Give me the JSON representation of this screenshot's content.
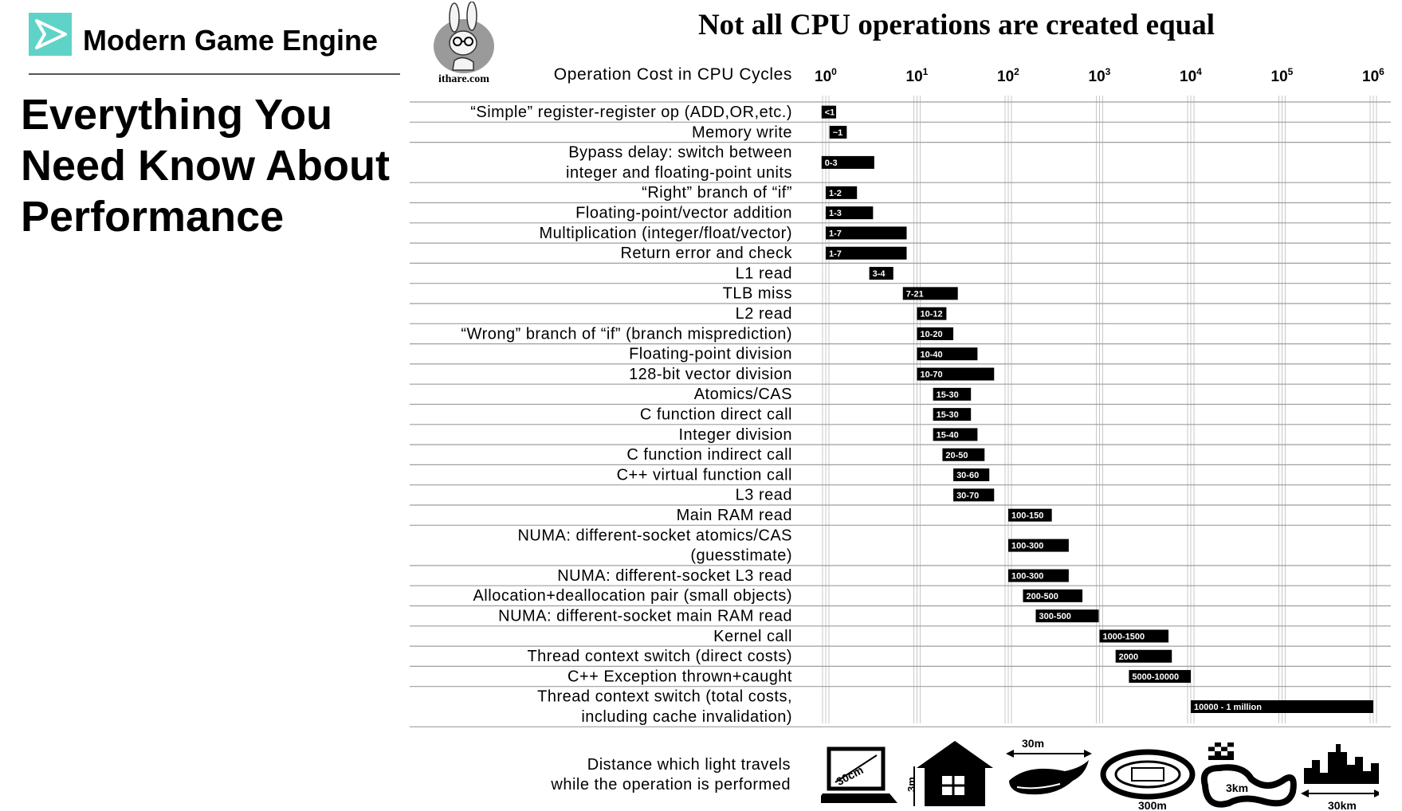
{
  "header": {
    "course_title": "Modern Game Engine",
    "slide_title": "Everything You Need Know About Performance"
  },
  "mascot": {
    "label": "ithare.com"
  },
  "chart_data": {
    "type": "bar",
    "title": "Not all CPU operations are created equal",
    "column_header": "Operation Cost in CPU Cycles",
    "x_scale": "log",
    "xlim": [
      1,
      1000000
    ],
    "x_ticks": [
      {
        "base": "10",
        "exp": "0"
      },
      {
        "base": "10",
        "exp": "1"
      },
      {
        "base": "10",
        "exp": "2"
      },
      {
        "base": "10",
        "exp": "3"
      },
      {
        "base": "10",
        "exp": "4"
      },
      {
        "base": "10",
        "exp": "5"
      },
      {
        "base": "10",
        "exp": "6"
      }
    ],
    "rows": [
      {
        "lines": [
          "“Simple” register-register op (ADD,OR,etc.)"
        ],
        "range": [
          0.9,
          1.3
        ],
        "label": "<1"
      },
      {
        "lines": [
          "Memory write"
        ],
        "range": [
          1.1,
          1.7
        ],
        "label": "~1"
      },
      {
        "lines": [
          "Bypass delay: switch between",
          "integer and floating-point units"
        ],
        "range": [
          0.9,
          3.4
        ],
        "label": "0-3"
      },
      {
        "lines": [
          "“Right” branch of “if”"
        ],
        "range": [
          1,
          2.2
        ],
        "label": "1-2"
      },
      {
        "lines": [
          "Floating-point/vector addition"
        ],
        "range": [
          1,
          3.3
        ],
        "label": "1-3"
      },
      {
        "lines": [
          "Multiplication (integer/float/vector)"
        ],
        "range": [
          1,
          7.7
        ],
        "label": "1-7"
      },
      {
        "lines": [
          "Return error and check"
        ],
        "range": [
          1,
          7.7
        ],
        "label": "1-7"
      },
      {
        "lines": [
          "L1 read"
        ],
        "range": [
          3,
          5.5
        ],
        "label": "3-4"
      },
      {
        "lines": [
          "TLB miss"
        ],
        "range": [
          7,
          28
        ],
        "label": "7-21"
      },
      {
        "lines": [
          "L2 read"
        ],
        "range": [
          10,
          21
        ],
        "label": "10-12"
      },
      {
        "lines": [
          "“Wrong” branch of “if” (branch misprediction)"
        ],
        "range": [
          10,
          25
        ],
        "label": "10-20"
      },
      {
        "lines": [
          "Floating-point division"
        ],
        "range": [
          10,
          46
        ],
        "label": "10-40"
      },
      {
        "lines": [
          "128-bit vector division"
        ],
        "range": [
          10,
          70
        ],
        "label": "10-70"
      },
      {
        "lines": [
          "Atomics/CAS"
        ],
        "range": [
          15,
          39
        ],
        "label": "15-30"
      },
      {
        "lines": [
          "C function direct call"
        ],
        "range": [
          15,
          39
        ],
        "label": "15-30"
      },
      {
        "lines": [
          "Integer division"
        ],
        "range": [
          15,
          46
        ],
        "label": "15-40"
      },
      {
        "lines": [
          "C function indirect call"
        ],
        "range": [
          19,
          55
        ],
        "label": "20-50"
      },
      {
        "lines": [
          "C++ virtual function call"
        ],
        "range": [
          25,
          62
        ],
        "label": "30-60"
      },
      {
        "lines": [
          "L3 read"
        ],
        "range": [
          25,
          70
        ],
        "label": "30-70"
      },
      {
        "lines": [
          "Main RAM read"
        ],
        "range": [
          100,
          300
        ],
        "label": "100-150"
      },
      {
        "lines": [
          "NUMA: different-socket atomics/CAS",
          "(guesstimate)"
        ],
        "range": [
          100,
          460
        ],
        "label": "100-300"
      },
      {
        "lines": [
          "NUMA: different-socket L3 read"
        ],
        "range": [
          100,
          460
        ],
        "label": "100-300"
      },
      {
        "lines": [
          "Allocation+deallocation pair (small objects)"
        ],
        "range": [
          145,
          650
        ],
        "label": "200-500"
      },
      {
        "lines": [
          "NUMA: different-socket main RAM read"
        ],
        "range": [
          200,
          980
        ],
        "label": "300-500"
      },
      {
        "lines": [
          "Kernel call"
        ],
        "range": [
          1000,
          5700
        ],
        "label": "1000-1500"
      },
      {
        "lines": [
          "Thread context switch (direct costs)"
        ],
        "range": [
          1500,
          6200
        ],
        "label": "2000"
      },
      {
        "lines": [
          "C++ Exception thrown+caught"
        ],
        "range": [
          2100,
          10000
        ],
        "label": "5000-10000"
      },
      {
        "lines": [
          "Thread context switch (total costs,",
          "including cache invalidation)"
        ],
        "range": [
          10000,
          1000000
        ],
        "label": "10000 - 1 million"
      }
    ]
  },
  "light_distance": {
    "label_lines": [
      "Distance which light travels",
      "while the operation is performed"
    ],
    "items": [
      {
        "icon": "laptop-icon",
        "label": "30cm"
      },
      {
        "icon": "house-icon",
        "label": "3m"
      },
      {
        "icon": "whale-icon",
        "label": "30m"
      },
      {
        "icon": "stadium-icon",
        "label": "300m"
      },
      {
        "icon": "race-track-icon",
        "label": "3km"
      },
      {
        "icon": "city-skyline-icon",
        "label": "30km"
      }
    ]
  },
  "colors": {
    "accent": "#5fd3c8",
    "bar": "#000000",
    "grid": "#bdbdbd"
  }
}
